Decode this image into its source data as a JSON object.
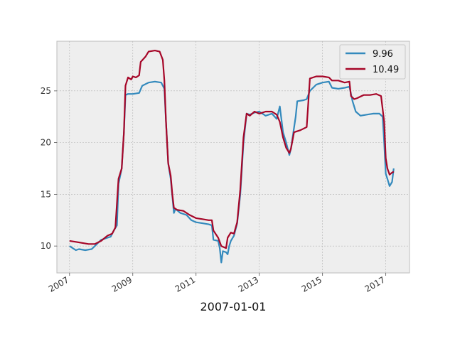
{
  "chart_data": {
    "type": "line",
    "xlabel": "2007-01-01",
    "ylabel": "",
    "title": "",
    "grid": true,
    "legend_position": "top-right",
    "x_ticks": [
      "2007",
      "2009",
      "2011",
      "2013",
      "2015",
      "2017"
    ],
    "y_ticks": [
      "10",
      "15",
      "20",
      "25"
    ],
    "xlim": [
      2006.6,
      2017.75
    ],
    "ylim": [
      7.4,
      29.8
    ],
    "series": [
      {
        "name": "9.96",
        "color": "#348ABD",
        "points": [
          [
            2007.0,
            10.0
          ],
          [
            2007.1,
            9.8
          ],
          [
            2007.2,
            9.6
          ],
          [
            2007.3,
            9.7
          ],
          [
            2007.5,
            9.6
          ],
          [
            2007.7,
            9.7
          ],
          [
            2007.8,
            10.0
          ],
          [
            2008.0,
            10.6
          ],
          [
            2008.2,
            10.8
          ],
          [
            2008.3,
            10.9
          ],
          [
            2008.4,
            11.5
          ],
          [
            2008.5,
            12.0
          ],
          [
            2008.55,
            16.0
          ],
          [
            2008.65,
            17.5
          ],
          [
            2008.72,
            21.0
          ],
          [
            2008.77,
            24.6
          ],
          [
            2008.85,
            24.7
          ],
          [
            2009.0,
            24.7
          ],
          [
            2009.2,
            24.8
          ],
          [
            2009.3,
            25.5
          ],
          [
            2009.5,
            25.8
          ],
          [
            2009.7,
            25.9
          ],
          [
            2009.9,
            25.8
          ],
          [
            2010.0,
            25.2
          ],
          [
            2010.05,
            22.0
          ],
          [
            2010.12,
            18.0
          ],
          [
            2010.2,
            16.5
          ],
          [
            2010.3,
            13.2
          ],
          [
            2010.35,
            13.6
          ],
          [
            2010.5,
            13.2
          ],
          [
            2010.7,
            13.0
          ],
          [
            2010.85,
            12.5
          ],
          [
            2011.0,
            12.3
          ],
          [
            2011.2,
            12.2
          ],
          [
            2011.4,
            12.1
          ],
          [
            2011.5,
            12.0
          ],
          [
            2011.55,
            10.6
          ],
          [
            2011.7,
            10.5
          ],
          [
            2011.75,
            9.8
          ],
          [
            2011.8,
            8.4
          ],
          [
            2011.85,
            9.5
          ],
          [
            2011.95,
            9.4
          ],
          [
            2012.0,
            9.2
          ],
          [
            2012.05,
            10.0
          ],
          [
            2012.1,
            10.5
          ],
          [
            2012.2,
            11.0
          ],
          [
            2012.3,
            12.2
          ],
          [
            2012.4,
            15.0
          ],
          [
            2012.5,
            20.0
          ],
          [
            2012.6,
            22.8
          ],
          [
            2012.7,
            22.7
          ],
          [
            2012.85,
            22.9
          ],
          [
            2013.0,
            23.0
          ],
          [
            2013.2,
            22.6
          ],
          [
            2013.4,
            22.8
          ],
          [
            2013.55,
            22.3
          ],
          [
            2013.65,
            23.5
          ],
          [
            2013.75,
            21.0
          ],
          [
            2013.85,
            20.0
          ],
          [
            2013.95,
            18.8
          ],
          [
            2014.0,
            19.4
          ],
          [
            2014.15,
            22.5
          ],
          [
            2014.2,
            24.0
          ],
          [
            2014.4,
            24.1
          ],
          [
            2014.5,
            24.2
          ],
          [
            2014.6,
            25.0
          ],
          [
            2014.8,
            25.6
          ],
          [
            2015.0,
            25.8
          ],
          [
            2015.2,
            25.9
          ],
          [
            2015.3,
            25.3
          ],
          [
            2015.5,
            25.2
          ],
          [
            2015.7,
            25.3
          ],
          [
            2015.85,
            25.4
          ],
          [
            2015.95,
            24.0
          ],
          [
            2016.05,
            23.0
          ],
          [
            2016.2,
            22.6
          ],
          [
            2016.4,
            22.7
          ],
          [
            2016.6,
            22.8
          ],
          [
            2016.8,
            22.8
          ],
          [
            2016.9,
            22.5
          ],
          [
            2016.95,
            20.0
          ],
          [
            2017.0,
            17.0
          ],
          [
            2017.05,
            16.5
          ],
          [
            2017.12,
            15.8
          ],
          [
            2017.2,
            16.2
          ],
          [
            2017.25,
            17.5
          ]
        ]
      },
      {
        "name": "10.49",
        "color": "#A60628",
        "points": [
          [
            2007.0,
            10.5
          ],
          [
            2007.2,
            10.4
          ],
          [
            2007.4,
            10.3
          ],
          [
            2007.6,
            10.2
          ],
          [
            2007.8,
            10.2
          ],
          [
            2008.0,
            10.5
          ],
          [
            2008.2,
            11.0
          ],
          [
            2008.35,
            11.2
          ],
          [
            2008.45,
            11.8
          ],
          [
            2008.55,
            16.5
          ],
          [
            2008.65,
            17.5
          ],
          [
            2008.72,
            21.0
          ],
          [
            2008.77,
            25.5
          ],
          [
            2008.85,
            26.3
          ],
          [
            2008.95,
            26.1
          ],
          [
            2009.0,
            26.4
          ],
          [
            2009.1,
            26.3
          ],
          [
            2009.2,
            26.5
          ],
          [
            2009.25,
            27.8
          ],
          [
            2009.4,
            28.3
          ],
          [
            2009.5,
            28.8
          ],
          [
            2009.7,
            28.9
          ],
          [
            2009.85,
            28.8
          ],
          [
            2009.95,
            28.0
          ],
          [
            2010.0,
            26.0
          ],
          [
            2010.05,
            22.0
          ],
          [
            2010.12,
            18.0
          ],
          [
            2010.2,
            16.8
          ],
          [
            2010.25,
            15.0
          ],
          [
            2010.3,
            13.7
          ],
          [
            2010.4,
            13.5
          ],
          [
            2010.6,
            13.4
          ],
          [
            2010.8,
            13.0
          ],
          [
            2011.0,
            12.7
          ],
          [
            2011.2,
            12.6
          ],
          [
            2011.4,
            12.5
          ],
          [
            2011.5,
            12.5
          ],
          [
            2011.55,
            11.5
          ],
          [
            2011.7,
            10.8
          ],
          [
            2011.8,
            10.0
          ],
          [
            2011.95,
            9.8
          ],
          [
            2012.0,
            10.8
          ],
          [
            2012.1,
            11.3
          ],
          [
            2012.2,
            11.2
          ],
          [
            2012.3,
            12.3
          ],
          [
            2012.4,
            15.5
          ],
          [
            2012.5,
            20.5
          ],
          [
            2012.6,
            22.8
          ],
          [
            2012.7,
            22.6
          ],
          [
            2012.85,
            23.0
          ],
          [
            2013.0,
            22.8
          ],
          [
            2013.2,
            23.0
          ],
          [
            2013.4,
            23.0
          ],
          [
            2013.55,
            22.7
          ],
          [
            2013.65,
            22.0
          ],
          [
            2013.75,
            20.5
          ],
          [
            2013.85,
            19.5
          ],
          [
            2013.95,
            19.0
          ],
          [
            2014.0,
            19.4
          ],
          [
            2014.1,
            21.0
          ],
          [
            2014.3,
            21.2
          ],
          [
            2014.5,
            21.5
          ],
          [
            2014.6,
            26.2
          ],
          [
            2014.8,
            26.4
          ],
          [
            2015.0,
            26.4
          ],
          [
            2015.2,
            26.3
          ],
          [
            2015.3,
            26.0
          ],
          [
            2015.5,
            26.0
          ],
          [
            2015.7,
            25.8
          ],
          [
            2015.85,
            25.9
          ],
          [
            2015.9,
            24.5
          ],
          [
            2016.0,
            24.2
          ],
          [
            2016.1,
            24.3
          ],
          [
            2016.3,
            24.6
          ],
          [
            2016.5,
            24.6
          ],
          [
            2016.7,
            24.7
          ],
          [
            2016.85,
            24.5
          ],
          [
            2016.95,
            22.0
          ],
          [
            2017.0,
            18.5
          ],
          [
            2017.05,
            17.5
          ],
          [
            2017.12,
            16.9
          ],
          [
            2017.2,
            17.1
          ],
          [
            2017.25,
            17.2
          ]
        ]
      }
    ]
  }
}
